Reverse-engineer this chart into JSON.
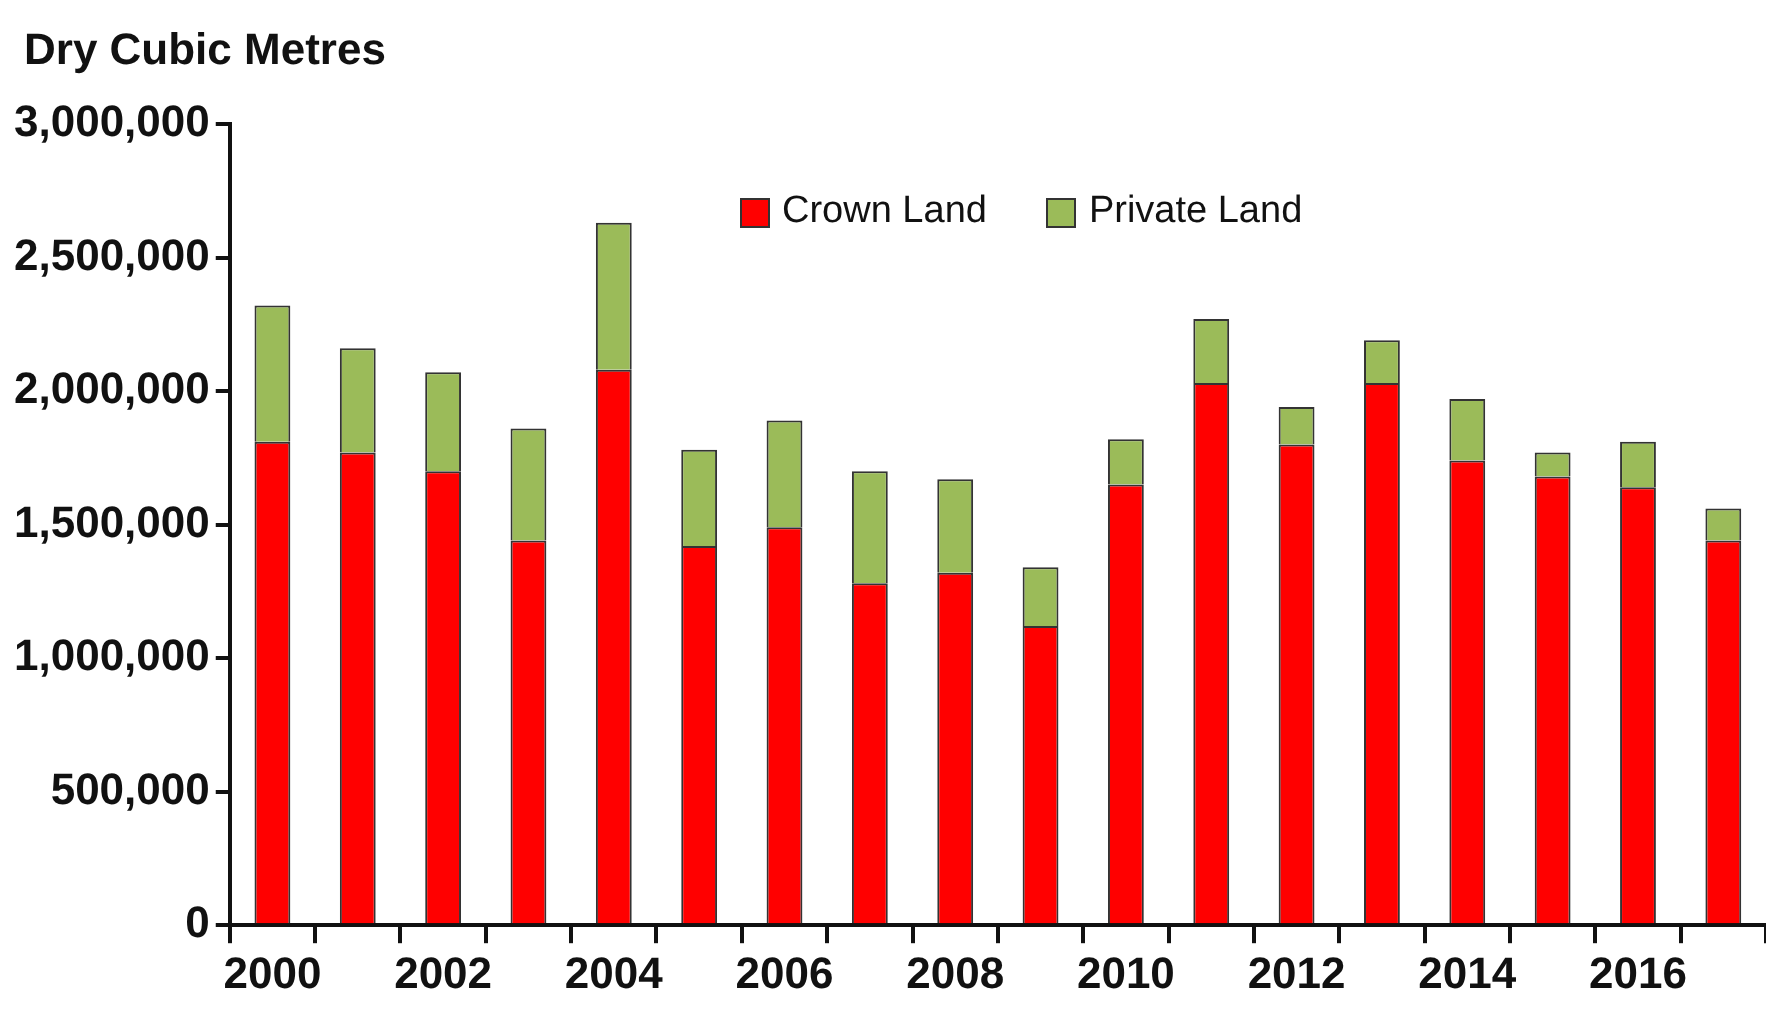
{
  "chart_data": {
    "type": "bar",
    "stacked": true,
    "ylabel": "Dry Cubic Metres",
    "categories": [
      "2000",
      null,
      "2002",
      null,
      "2004",
      null,
      "2006",
      null,
      "2008",
      null,
      "2010",
      null,
      "2012",
      null,
      "2014",
      null,
      "2016",
      null
    ],
    "series": [
      {
        "name": "Crown Land",
        "color": "#ff0000",
        "values": [
          1810000,
          1770000,
          1700000,
          1440000,
          2080000,
          1420000,
          1490000,
          1280000,
          1320000,
          1120000,
          1650000,
          2030000,
          1800000,
          2030000,
          1740000,
          1680000,
          1640000,
          1440000
        ]
      },
      {
        "name": "Private Land",
        "color": "#9bbb59",
        "values": [
          510000,
          390000,
          370000,
          420000,
          550000,
          360000,
          400000,
          420000,
          350000,
          220000,
          170000,
          240000,
          140000,
          160000,
          230000,
          90000,
          170000,
          120000
        ]
      }
    ],
    "ylim": [
      0,
      3000000
    ],
    "yticks": [
      0,
      {
        "value": 500000,
        "label": "500,000"
      },
      {
        "value": 1000000,
        "label": "1,000,000"
      },
      {
        "value": 1500000,
        "label": "1,500,000"
      },
      {
        "value": 2000000,
        "label": "2,000,000"
      },
      {
        "value": 2500000,
        "label": "2,500,000"
      },
      {
        "value": 3000000,
        "label": "3,000,000"
      }
    ],
    "legend": "top"
  }
}
